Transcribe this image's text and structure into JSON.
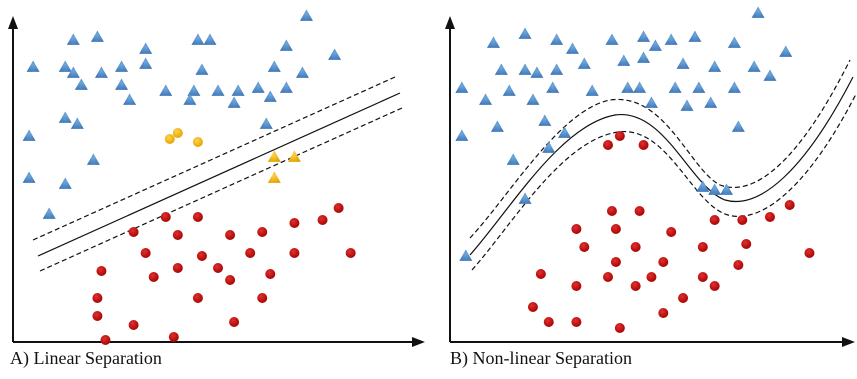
{
  "panels": [
    {
      "id": "A",
      "caption": "A) Linear Separation",
      "boundary": "linear",
      "classes": [
        {
          "name": "triangle-blue",
          "marker": "triangle",
          "color": "#4a86c5",
          "points": [
            [
              0.15,
              0.1
            ],
            [
              0.21,
              0.09
            ],
            [
              0.33,
              0.13
            ],
            [
              0.46,
              0.1
            ],
            [
              0.49,
              0.1
            ],
            [
              0.68,
              0.12
            ],
            [
              0.8,
              0.15
            ],
            [
              0.73,
              0.02
            ],
            [
              0.05,
              0.19
            ],
            [
              0.13,
              0.19
            ],
            [
              0.15,
              0.21
            ],
            [
              0.22,
              0.21
            ],
            [
              0.27,
              0.19
            ],
            [
              0.33,
              0.18
            ],
            [
              0.47,
              0.2
            ],
            [
              0.65,
              0.19
            ],
            [
              0.72,
              0.21
            ],
            [
              0.17,
              0.25
            ],
            [
              0.27,
              0.25
            ],
            [
              0.38,
              0.27
            ],
            [
              0.45,
              0.27
            ],
            [
              0.51,
              0.27
            ],
            [
              0.56,
              0.27
            ],
            [
              0.61,
              0.26
            ],
            [
              0.68,
              0.26
            ],
            [
              0.29,
              0.3
            ],
            [
              0.44,
              0.3
            ],
            [
              0.55,
              0.31
            ],
            [
              0.64,
              0.29
            ],
            [
              0.13,
              0.36
            ],
            [
              0.16,
              0.38
            ],
            [
              0.04,
              0.42
            ],
            [
              0.2,
              0.5
            ],
            [
              0.63,
              0.38
            ],
            [
              0.04,
              0.56
            ],
            [
              0.13,
              0.58
            ],
            [
              0.09,
              0.68
            ]
          ]
        },
        {
          "name": "circle-yellow",
          "marker": "circle",
          "color": "#f3b40f",
          "points": [
            [
              0.39,
              0.43
            ],
            [
              0.41,
              0.41
            ],
            [
              0.46,
              0.44
            ]
          ]
        },
        {
          "name": "triangle-yellow",
          "marker": "triangle",
          "color": "#f3b40f",
          "points": [
            [
              0.65,
              0.49
            ],
            [
              0.7,
              0.49
            ],
            [
              0.65,
              0.56
            ]
          ]
        },
        {
          "name": "circle-red",
          "marker": "circle",
          "color": "#c00000",
          "points": [
            [
              0.81,
              0.66
            ],
            [
              0.38,
              0.69
            ],
            [
              0.46,
              0.69
            ],
            [
              0.7,
              0.71
            ],
            [
              0.77,
              0.7
            ],
            [
              0.3,
              0.74
            ],
            [
              0.41,
              0.75
            ],
            [
              0.54,
              0.75
            ],
            [
              0.62,
              0.74
            ],
            [
              0.33,
              0.81
            ],
            [
              0.47,
              0.82
            ],
            [
              0.59,
              0.81
            ],
            [
              0.7,
              0.81
            ],
            [
              0.84,
              0.81
            ],
            [
              0.22,
              0.87
            ],
            [
              0.41,
              0.86
            ],
            [
              0.51,
              0.86
            ],
            [
              0.64,
              0.88
            ],
            [
              0.35,
              0.89
            ],
            [
              0.54,
              0.9
            ],
            [
              0.21,
              0.96
            ],
            [
              0.46,
              0.96
            ],
            [
              0.62,
              0.96
            ],
            [
              0.21,
              1.02
            ],
            [
              0.3,
              1.05
            ],
            [
              0.55,
              1.04
            ],
            [
              0.23,
              1.1
            ],
            [
              0.4,
              1.09
            ]
          ]
        }
      ]
    },
    {
      "id": "B",
      "caption": "B) Non-linear Separation",
      "boundary": "curved",
      "classes": [
        {
          "name": "triangle-blue",
          "marker": "triangle",
          "color": "#4a86c5",
          "points": [
            [
              0.78,
              0.01
            ],
            [
              0.11,
              0.11
            ],
            [
              0.19,
              0.08
            ],
            [
              0.27,
              0.1
            ],
            [
              0.31,
              0.13
            ],
            [
              0.41,
              0.1
            ],
            [
              0.49,
              0.09
            ],
            [
              0.52,
              0.12
            ],
            [
              0.56,
              0.1
            ],
            [
              0.62,
              0.09
            ],
            [
              0.72,
              0.11
            ],
            [
              0.85,
              0.14
            ],
            [
              0.13,
              0.2
            ],
            [
              0.19,
              0.2
            ],
            [
              0.22,
              0.21
            ],
            [
              0.27,
              0.2
            ],
            [
              0.34,
              0.18
            ],
            [
              0.44,
              0.17
            ],
            [
              0.49,
              0.16
            ],
            [
              0.59,
              0.18
            ],
            [
              0.67,
              0.19
            ],
            [
              0.77,
              0.19
            ],
            [
              0.81,
              0.22
            ],
            [
              0.03,
              0.26
            ],
            [
              0.15,
              0.27
            ],
            [
              0.26,
              0.26
            ],
            [
              0.36,
              0.27
            ],
            [
              0.45,
              0.26
            ],
            [
              0.48,
              0.26
            ],
            [
              0.57,
              0.26
            ],
            [
              0.63,
              0.26
            ],
            [
              0.72,
              0.26
            ],
            [
              0.09,
              0.3
            ],
            [
              0.21,
              0.3
            ],
            [
              0.51,
              0.31
            ],
            [
              0.6,
              0.32
            ],
            [
              0.66,
              0.31
            ],
            [
              0.12,
              0.39
            ],
            [
              0.24,
              0.37
            ],
            [
              0.29,
              0.41
            ],
            [
              0.73,
              0.39
            ],
            [
              0.03,
              0.42
            ],
            [
              0.25,
              0.46
            ],
            [
              0.16,
              0.5
            ],
            [
              0.19,
              0.63
            ],
            [
              0.64,
              0.59
            ],
            [
              0.67,
              0.6
            ],
            [
              0.7,
              0.6
            ],
            [
              0.04,
              0.82
            ]
          ]
        },
        {
          "name": "circle-red",
          "marker": "circle",
          "color": "#c00000",
          "points": [
            [
              0.43,
              0.42
            ],
            [
              0.4,
              0.45
            ],
            [
              0.49,
              0.45
            ],
            [
              0.41,
              0.67
            ],
            [
              0.48,
              0.67
            ],
            [
              0.86,
              0.65
            ],
            [
              0.67,
              0.7
            ],
            [
              0.74,
              0.7
            ],
            [
              0.81,
              0.69
            ],
            [
              0.32,
              0.73
            ],
            [
              0.42,
              0.73
            ],
            [
              0.56,
              0.74
            ],
            [
              0.34,
              0.79
            ],
            [
              0.47,
              0.79
            ],
            [
              0.64,
              0.79
            ],
            [
              0.75,
              0.78
            ],
            [
              0.91,
              0.81
            ],
            [
              0.42,
              0.84
            ],
            [
              0.54,
              0.84
            ],
            [
              0.73,
              0.85
            ],
            [
              0.23,
              0.88
            ],
            [
              0.4,
              0.89
            ],
            [
              0.51,
              0.89
            ],
            [
              0.64,
              0.89
            ],
            [
              0.32,
              0.92
            ],
            [
              0.47,
              0.92
            ],
            [
              0.67,
              0.92
            ],
            [
              0.59,
              0.96
            ],
            [
              0.21,
              0.99
            ],
            [
              0.25,
              1.04
            ],
            [
              0.32,
              1.04
            ],
            [
              0.43,
              1.06
            ],
            [
              0.54,
              1.01
            ]
          ]
        }
      ]
    }
  ]
}
